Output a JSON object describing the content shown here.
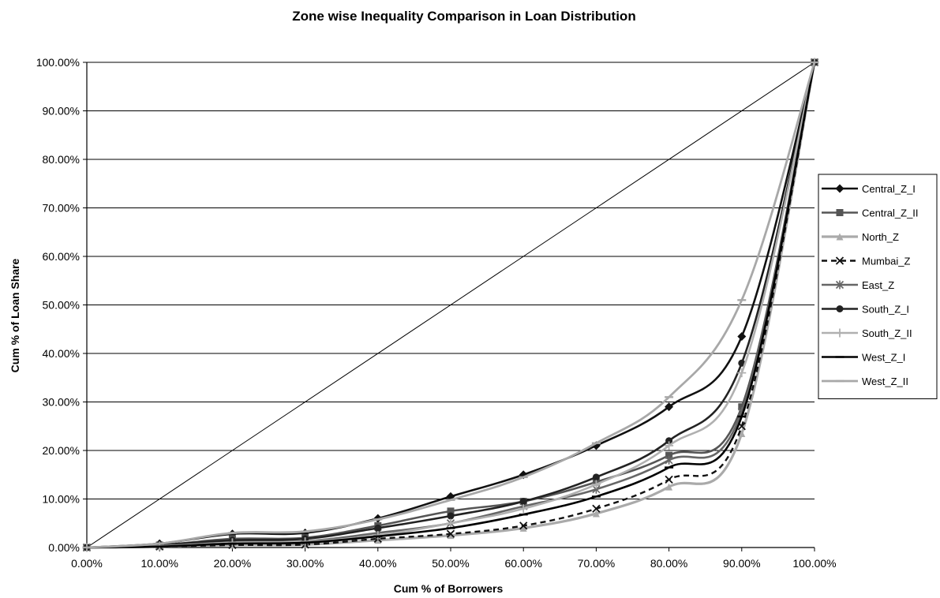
{
  "chart_data": {
    "type": "line",
    "title": "Zone wise Inequality Comparison in Loan Distribution",
    "xlabel": "Cum % of Borrowers",
    "ylabel": "Cum % of Loan Share",
    "x": [
      0,
      10,
      20,
      30,
      40,
      50,
      60,
      70,
      80,
      90,
      100
    ],
    "x_tick_labels": [
      "0.00%",
      "10.00%",
      "20.00%",
      "30.00%",
      "40.00%",
      "50.00%",
      "60.00%",
      "70.00%",
      "80.00%",
      "90.00%",
      "100.00%"
    ],
    "y_tick_labels": [
      "0.00%",
      "10.00%",
      "20.00%",
      "30.00%",
      "40.00%",
      "50.00%",
      "60.00%",
      "70.00%",
      "80.00%",
      "90.00%",
      "100.00%"
    ],
    "xlim": [
      0,
      100
    ],
    "ylim": [
      0,
      100
    ],
    "grid": "horizontal",
    "legend_position": "right",
    "equality_line": {
      "x": [
        0,
        100
      ],
      "y": [
        0,
        100
      ],
      "color": "#000000"
    },
    "series": [
      {
        "name": "Central_Z_I",
        "color": "#111111",
        "marker": "diamond",
        "dash": "",
        "width": 2.6,
        "y": [
          0,
          0.8,
          2.8,
          3.0,
          6.0,
          10.5,
          15.0,
          21.0,
          29.0,
          43.5,
          100
        ]
      },
      {
        "name": "Central_Z_II",
        "color": "#555555",
        "marker": "square",
        "dash": "",
        "width": 2.6,
        "y": [
          0,
          0.5,
          1.8,
          2.0,
          4.5,
          7.5,
          9.5,
          13.5,
          19.0,
          29.0,
          100
        ]
      },
      {
        "name": "North_Z",
        "color": "#aaaaaa",
        "marker": "triangle",
        "dash": "",
        "width": 3.2,
        "y": [
          0,
          0.2,
          0.5,
          0.6,
          1.5,
          2.5,
          4.0,
          7.0,
          12.5,
          23.5,
          100
        ]
      },
      {
        "name": "Mumbai_Z",
        "color": "#111111",
        "marker": "x",
        "dash": "7,5",
        "width": 2.4,
        "y": [
          0,
          0.2,
          0.5,
          0.6,
          1.8,
          2.8,
          4.5,
          8.0,
          14.0,
          25.0,
          100
        ]
      },
      {
        "name": "East_Z",
        "color": "#666666",
        "marker": "asterisk",
        "dash": "",
        "width": 2.6,
        "y": [
          0,
          0.4,
          1.2,
          1.3,
          3.0,
          5.0,
          8.5,
          12.0,
          18.0,
          28.0,
          100
        ]
      },
      {
        "name": "South_Z_I",
        "color": "#222222",
        "marker": "circle",
        "dash": "",
        "width": 2.6,
        "y": [
          0,
          0.5,
          1.5,
          1.8,
          4.0,
          6.5,
          9.5,
          14.5,
          22.0,
          38.0,
          100
        ]
      },
      {
        "name": "South_Z_II",
        "color": "#b0b0b0",
        "marker": "plus",
        "dash": "",
        "width": 2.6,
        "y": [
          0,
          0.3,
          1.0,
          1.2,
          2.5,
          5.0,
          8.0,
          13.0,
          21.0,
          36.0,
          100
        ]
      },
      {
        "name": "West_Z_I",
        "color": "#000000",
        "marker": "dash",
        "dash": "",
        "width": 2.6,
        "y": [
          0,
          0.2,
          0.8,
          1.0,
          2.3,
          4.0,
          6.8,
          10.5,
          16.5,
          27.0,
          100
        ]
      },
      {
        "name": "West_Z_II",
        "color": "#a8a8a8",
        "marker": "dash",
        "dash": "",
        "width": 2.8,
        "y": [
          0,
          0.8,
          3.0,
          3.3,
          5.8,
          9.8,
          14.5,
          21.5,
          31.0,
          51.0,
          100
        ]
      }
    ]
  }
}
